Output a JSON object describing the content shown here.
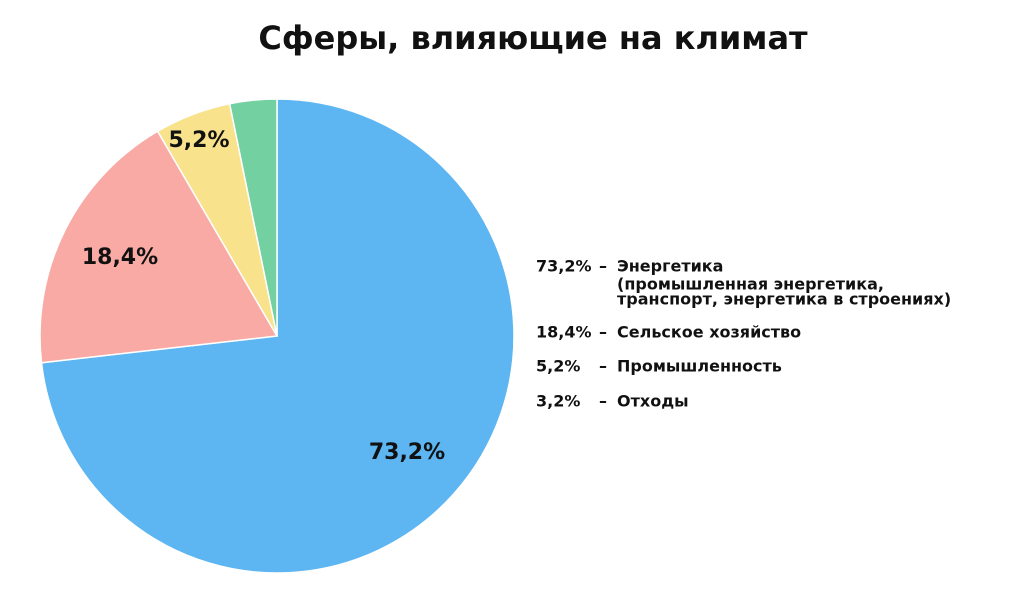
{
  "chart_data": {
    "type": "pie",
    "title": "Сферы, влияющие на климат",
    "categories": [
      "Энергетика",
      "Сельское хозяйство",
      "Промышленность",
      "Отходы"
    ],
    "values": [
      73.2,
      18.4,
      5.2,
      3.2
    ],
    "value_labels": [
      "73,2%",
      "18,4%",
      "5,2%",
      "3,2%"
    ],
    "colors": [
      "#5db5f2",
      "#f9aaa5",
      "#f8e28c",
      "#72d0a1"
    ],
    "legend_separator": "–",
    "annotations": [
      "(промышленная энергетика,",
      "транспорт, энергетика в строениях)"
    ],
    "legend": "right"
  }
}
